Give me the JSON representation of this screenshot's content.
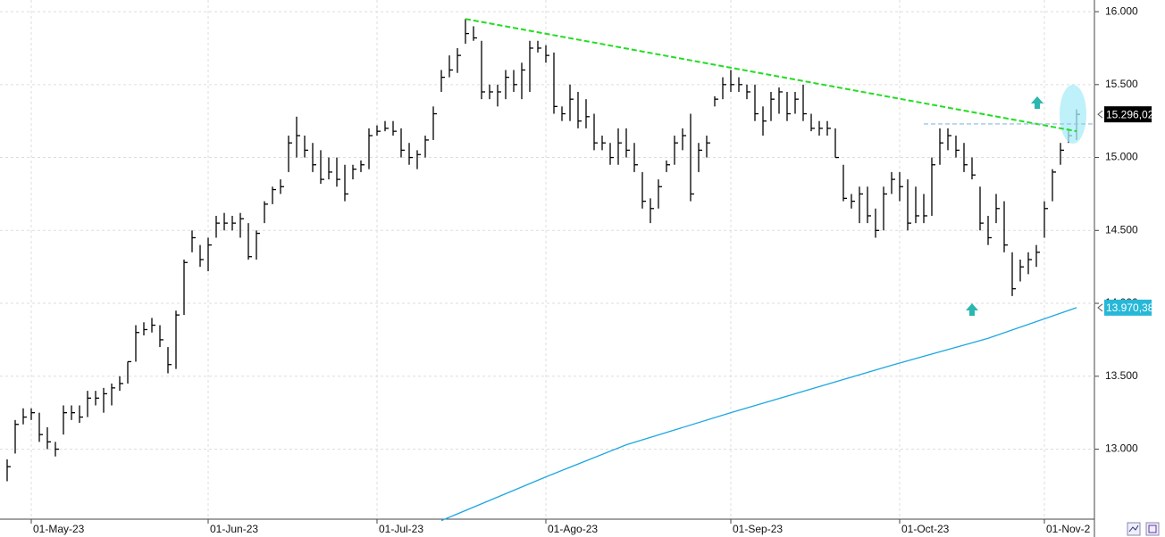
{
  "chart_data": {
    "type": "ohlc",
    "color": "#000000",
    "categories": [
      null,
      null,
      null,
      "01-May-23",
      null,
      null,
      null,
      null,
      null,
      null,
      null,
      null,
      null,
      null,
      null,
      null,
      null,
      null,
      null,
      null,
      null,
      null,
      null,
      null,
      null,
      "01-Jun-23",
      null,
      null,
      null,
      null,
      null,
      null,
      null,
      null,
      null,
      null,
      null,
      null,
      null,
      null,
      null,
      null,
      null,
      null,
      null,
      null,
      "01-Jul-23",
      null,
      null,
      null,
      null,
      null,
      null,
      null,
      null,
      null,
      null,
      null,
      null,
      null,
      null,
      null,
      null,
      null,
      null,
      null,
      null,
      "01-Ago-23",
      null,
      null,
      null,
      null,
      null,
      null,
      null,
      null,
      null,
      null,
      null,
      null,
      null,
      null,
      null,
      null,
      null,
      null,
      null,
      null,
      null,
      null,
      "01-Sep-23",
      null,
      null,
      null,
      null,
      null,
      null,
      null,
      null,
      null,
      null,
      null,
      null,
      null,
      null,
      null,
      null,
      null,
      null,
      null,
      null,
      "01-Oct-23",
      null,
      null,
      null,
      null,
      null,
      null,
      null,
      null,
      null,
      null,
      null,
      null,
      null,
      null,
      null,
      null,
      null,
      "01-Nov-2",
      null,
      null,
      null,
      null
    ],
    "high": [
      12930,
      13200,
      13280,
      13280,
      13250,
      13150,
      13050,
      13300,
      13300,
      13300,
      13400,
      13400,
      13420,
      13450,
      13500,
      13600,
      13850,
      13870,
      13900,
      13850,
      13700,
      13950,
      14300,
      14500,
      14400,
      14450,
      14600,
      14620,
      14600,
      14620,
      14550,
      14500,
      14700,
      14800,
      14850,
      15150,
      15280,
      15150,
      15100,
      15050,
      15000,
      15000,
      14950,
      14950,
      14980,
      15200,
      15220,
      15250,
      15250,
      15200,
      15100,
      15050,
      15150,
      15350,
      15600,
      15700,
      15750,
      15950,
      15900,
      15800,
      15500,
      15500,
      15600,
      15600,
      15650,
      15800,
      15800,
      15770,
      15720,
      15350,
      15500,
      15450,
      15400,
      15300,
      15150,
      15100,
      15200,
      15200,
      15100,
      14900,
      14720,
      14850,
      14980,
      15150,
      15200,
      15300,
      15100,
      15150,
      15420,
      15550,
      15600,
      15550,
      15500,
      15500,
      15350,
      15450,
      15480,
      15450,
      15450,
      15500,
      15300,
      15250,
      15250,
      15200,
      14950,
      14750,
      14800,
      14800,
      14650,
      14800,
      14900,
      14900,
      14850,
      14800,
      14750,
      15000,
      15200,
      15200,
      15150,
      15100,
      15000,
      14800,
      14600,
      14750,
      14700,
      14350,
      14300,
      14350,
      14400,
      14700,
      14920,
      15100,
      15200,
      15330
    ],
    "low": [
      12780,
      12970,
      13170,
      13200,
      13050,
      13000,
      12950,
      13100,
      13200,
      13180,
      13220,
      13300,
      13250,
      13300,
      13400,
      13450,
      13600,
      13780,
      13800,
      13700,
      13520,
      13550,
      13920,
      14350,
      14250,
      14220,
      14450,
      14500,
      14500,
      14450,
      14300,
      14300,
      14550,
      14680,
      14750,
      14900,
      15000,
      15000,
      14900,
      14820,
      14850,
      14800,
      14700,
      14850,
      14900,
      14920,
      15150,
      15180,
      15150,
      15000,
      14950,
      14920,
      15000,
      15120,
      15450,
      15550,
      15580,
      15780,
      15800,
      15400,
      15400,
      15350,
      15400,
      15450,
      15400,
      15450,
      15720,
      15650,
      15300,
      15250,
      15250,
      15200,
      15200,
      15050,
      15050,
      14950,
      14950,
      15000,
      14900,
      14650,
      14550,
      14650,
      14900,
      14950,
      15050,
      14700,
      14900,
      15000,
      15350,
      15400,
      15450,
      15450,
      15400,
      15250,
      15150,
      15250,
      15300,
      15250,
      15300,
      15250,
      15180,
      15150,
      15150,
      15000,
      14700,
      14650,
      14550,
      14550,
      14450,
      14500,
      14750,
      14700,
      14500,
      14550,
      14550,
      14600,
      14950,
      15050,
      15000,
      14900,
      14850,
      14500,
      14400,
      14550,
      14350,
      14050,
      14150,
      14200,
      14250,
      14450,
      14700,
      14950,
      15100,
      15120
    ],
    "close": [
      12880,
      13170,
      13220,
      13250,
      13100,
      13050,
      13000,
      13250,
      13250,
      13220,
      13350,
      13350,
      13380,
      13420,
      13450,
      13600,
      13800,
      13820,
      13850,
      13750,
      13580,
      13920,
      14280,
      14450,
      14300,
      14400,
      14550,
      14550,
      14550,
      14580,
      14320,
      14480,
      14680,
      14780,
      14800,
      15100,
      15150,
      15050,
      14950,
      14850,
      14900,
      14850,
      14750,
      14920,
      14950,
      15150,
      15180,
      15200,
      15180,
      15050,
      15000,
      15020,
      15120,
      15300,
      15550,
      15600,
      15700,
      15850,
      15820,
      15450,
      15450,
      15450,
      15550,
      15500,
      15600,
      15750,
      15750,
      15700,
      15350,
      15300,
      15400,
      15250,
      15280,
      15100,
      15100,
      15000,
      15100,
      15050,
      14950,
      14700,
      14650,
      14800,
      14950,
      15100,
      15150,
      14750,
      15050,
      15100,
      15400,
      15500,
      15500,
      15500,
      15450,
      15300,
      15250,
      15400,
      15450,
      15300,
      15400,
      15300,
      15200,
      15200,
      15200,
      15000,
      14720,
      14700,
      14750,
      14600,
      14500,
      14750,
      14850,
      14800,
      14550,
      14600,
      14600,
      14950,
      15100,
      15150,
      15050,
      14950,
      14880,
      14550,
      14450,
      14650,
      14400,
      14100,
      14250,
      14300,
      14350,
      14650,
      14900,
      15050,
      15150,
      15296.02
    ],
    "trendline": {
      "color": "#22dd22",
      "x": [
        57,
        133
      ],
      "values": [
        15950,
        15180
      ]
    },
    "moving_average": {
      "color": "#1ea7e0",
      "x": [
        54,
        67,
        77,
        90,
        110,
        122,
        133
      ],
      "values": [
        12510,
        12810,
        13030,
        13250,
        13575,
        13760,
        13970.38
      ]
    },
    "level": {
      "color": "#9ec6e6",
      "x": [
        114,
        133
      ],
      "value": 15230
    },
    "price_labels": [
      {
        "value": 15296.02,
        "label": "15.296,02",
        "color": "#000000"
      },
      {
        "value": 13970.38,
        "label": "13.970,38",
        "color": "#27b8d8"
      }
    ],
    "ylim": [
      12520,
      16080
    ],
    "yticks": [
      {
        "value": 16000,
        "label": "16.000"
      },
      {
        "value": 15500,
        "label": "15.500"
      },
      {
        "value": 15000,
        "label": "15.000"
      },
      {
        "value": 14500,
        "label": "14.500"
      },
      {
        "value": 14000,
        "label": "14.000"
      },
      {
        "value": 13500,
        "label": "13.500"
      },
      {
        "value": 13000,
        "label": "13.000"
      }
    ],
    "grid": true
  }
}
